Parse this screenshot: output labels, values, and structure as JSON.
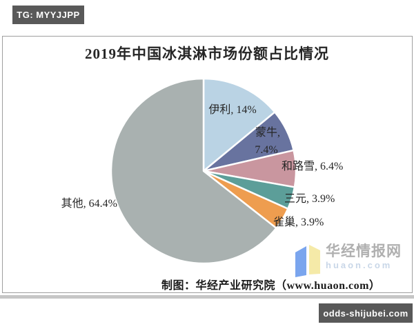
{
  "header_badge": {
    "label": "TG: MYYJJPP"
  },
  "footer_badge": {
    "label": "odds-shijubei.com"
  },
  "chart_data": {
    "type": "pie",
    "title": "2019年中国冰淇淋市场份额占比情况",
    "series": [
      {
        "name": "伊利",
        "value": 14,
        "label": "伊利, 14%",
        "color": "#bad3e4"
      },
      {
        "name": "蒙牛",
        "value": 7.4,
        "label": "蒙牛, 7.4%",
        "color": "#68739f"
      },
      {
        "name": "和路雪",
        "value": 6.4,
        "label": "和路雪, 6.4%",
        "color": "#c9969f"
      },
      {
        "name": "三元",
        "value": 3.9,
        "label": "三元, 3.9%",
        "color": "#5c9e99"
      },
      {
        "name": "雀巢",
        "value": 3.9,
        "label": "雀巢, 3.9%",
        "color": "#ee9d4f"
      },
      {
        "name": "其他",
        "value": 64.4,
        "label": "其他, 64.4%",
        "color": "#a9b1b0"
      }
    ],
    "start_angle_deg": 0,
    "direction": "clockwise",
    "legend": "none",
    "slice_border_color": "#ffffff",
    "label_color": "#262626",
    "source_caption": "制图：华经产业研究院（www.huaon.com）"
  },
  "watermark": {
    "logo_icon": "open-book-icon",
    "site_name": "华经情报网",
    "site_url": "huaon.com",
    "name_color": "#b0b0b0",
    "url_color": "#c9d7e8",
    "logo_blue": "#7aa5ee",
    "logo_yellow": "#f5eaa8"
  },
  "colors": {
    "badge_background": "#595959",
    "badge_text": "#ffffff",
    "panel_border": "#9e9e9e",
    "bottom_strip": "#c6c6c6"
  }
}
